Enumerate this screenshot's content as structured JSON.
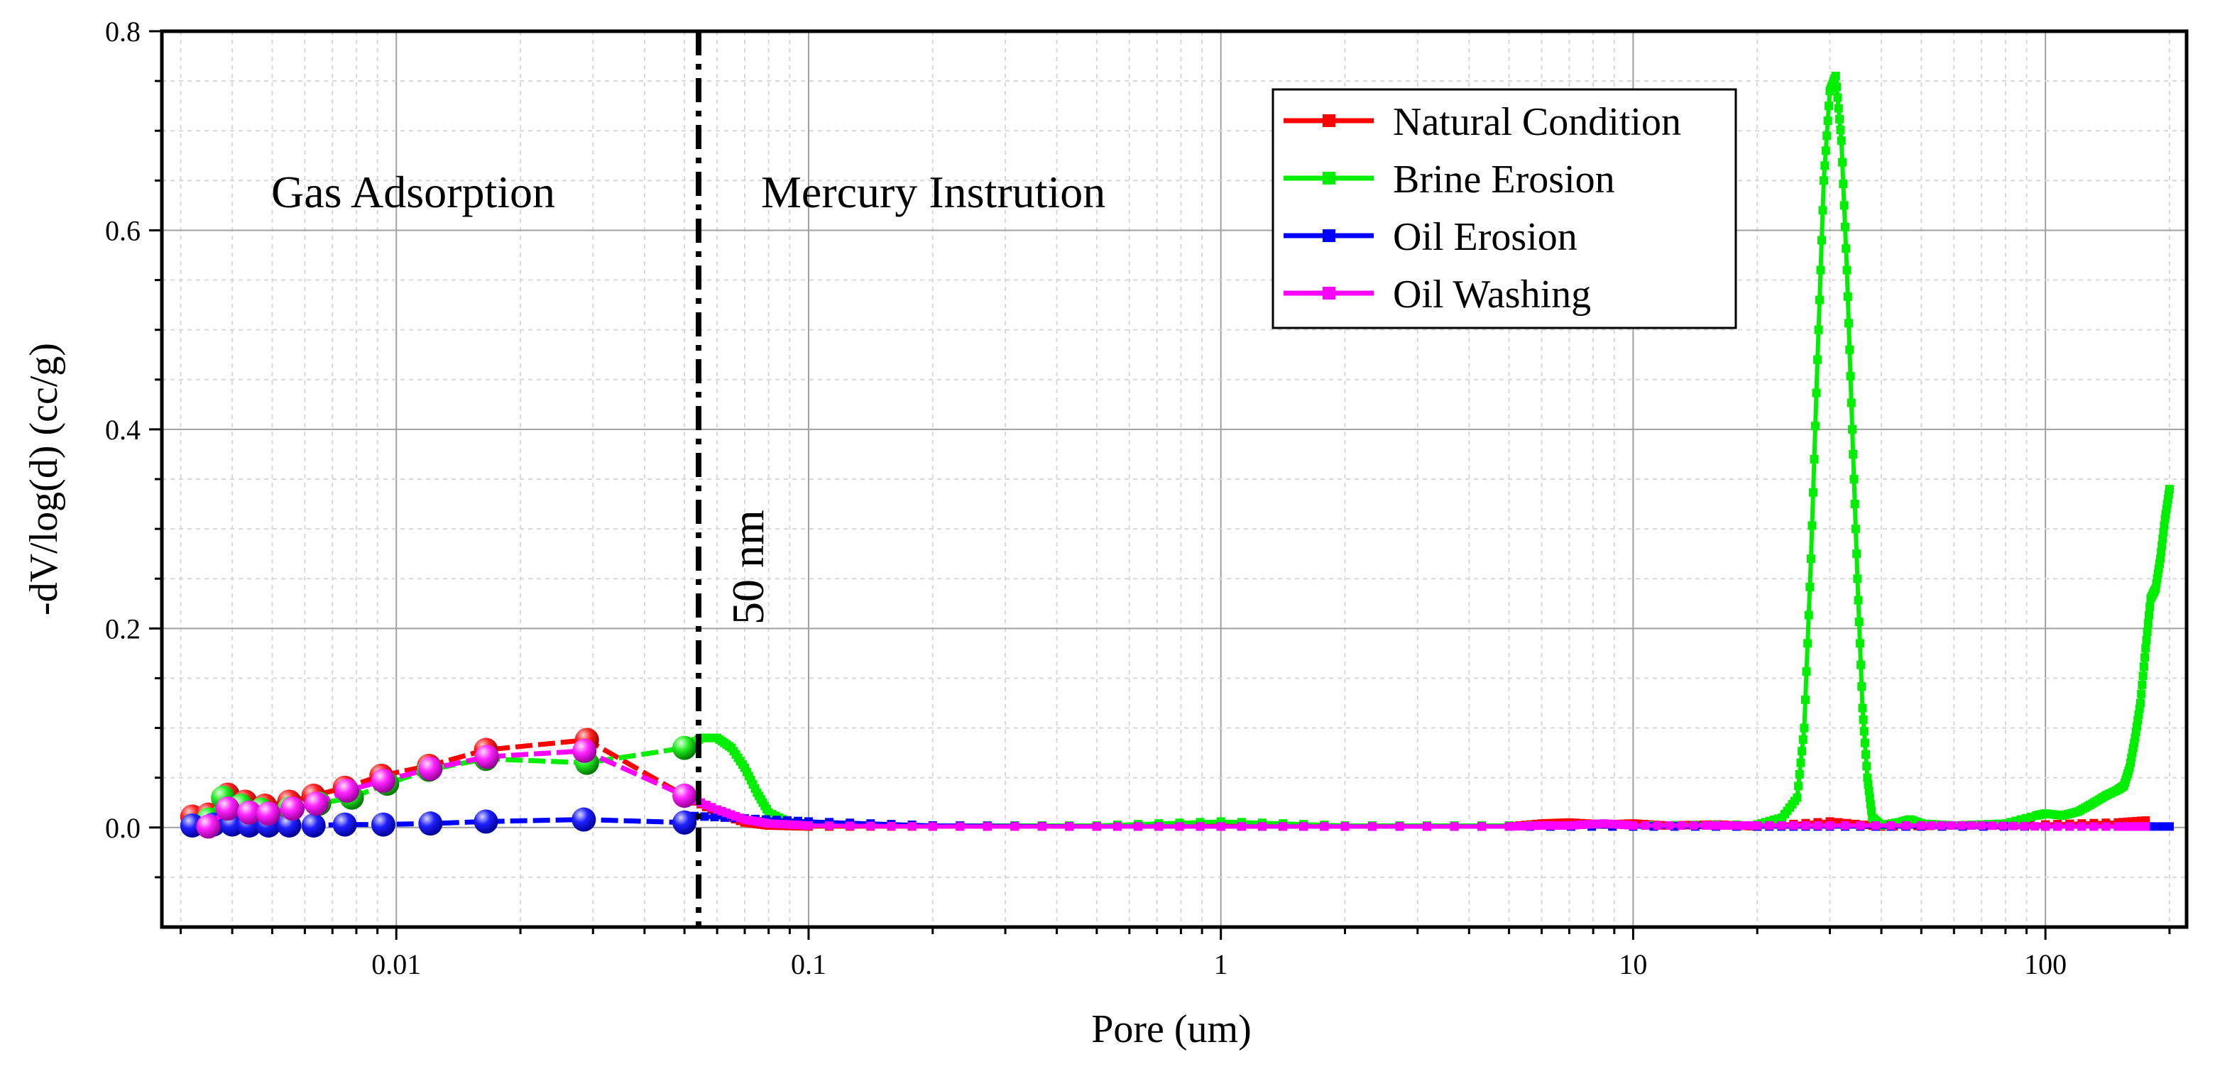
{
  "chart_data": {
    "type": "line",
    "title": "",
    "xlabel": "Pore (um)",
    "ylabel": "-dV/log(d) (cc/g)",
    "xscale": "log",
    "xlim": [
      0.0027,
      220
    ],
    "ylim": [
      -0.1,
      0.8
    ],
    "xticks": [
      0.01,
      0.1,
      1,
      10,
      100
    ],
    "xtick_labels": [
      "0.01",
      "0.1",
      "1",
      "10",
      "100"
    ],
    "yticks": [
      0.0,
      0.2,
      0.4,
      0.6,
      0.8
    ],
    "ytick_labels": [
      "0.0",
      "0.2",
      "0.4",
      "0.6",
      "0.8"
    ],
    "grid": true,
    "legend_position": "top-right",
    "divider": {
      "x": 0.05,
      "label": "50 nm"
    },
    "annotations": {
      "left": "Gas Adsorption",
      "right": "Mercury Instrution"
    },
    "series": [
      {
        "name": "Natural Condition",
        "color": "#ff0000",
        "gas_x": [
          0.0032,
          0.0035,
          0.0039,
          0.0043,
          0.0048,
          0.0055,
          0.0063,
          0.0075,
          0.0092,
          0.012,
          0.0165,
          0.029,
          0.05
        ],
        "gas_y": [
          0.011,
          0.013,
          0.033,
          0.026,
          0.022,
          0.026,
          0.032,
          0.04,
          0.052,
          0.062,
          0.078,
          0.088,
          0.032
        ],
        "hg_x": [
          0.05,
          0.06,
          0.07,
          0.08,
          0.1,
          0.2,
          0.5,
          1,
          2,
          5,
          6,
          7,
          8.5,
          10,
          12,
          16,
          20,
          30,
          40,
          60,
          100,
          150,
          175
        ],
        "hg_y": [
          0.032,
          0.015,
          0.005,
          0.002,
          0.001,
          0.001,
          0.001,
          0.002,
          0.001,
          0.001,
          0.004,
          0.005,
          0.003,
          0.004,
          0.002,
          0.003,
          0.001,
          0.006,
          0.001,
          0.002,
          0.003,
          0.005,
          0.007
        ]
      },
      {
        "name": "Brine Erosion",
        "color": "#00ee00",
        "gas_x": [
          0.0035,
          0.0038,
          0.0042,
          0.0047,
          0.0055,
          0.0065,
          0.0078,
          0.0095,
          0.012,
          0.0165,
          0.029,
          0.05
        ],
        "gas_y": [
          0.008,
          0.03,
          0.022,
          0.018,
          0.019,
          0.024,
          0.03,
          0.044,
          0.058,
          0.069,
          0.065,
          0.08
        ],
        "hg_x": [
          0.05,
          0.055,
          0.06,
          0.065,
          0.07,
          0.075,
          0.08,
          0.09,
          0.1,
          0.2,
          0.5,
          1,
          2,
          5,
          10,
          20,
          23,
          25,
          26,
          27,
          28,
          29,
          30,
          31,
          32,
          33,
          34,
          35,
          36,
          37,
          38,
          40,
          45,
          47,
          50,
          60,
          80,
          95,
          100,
          110,
          120,
          130,
          140,
          150,
          155,
          160,
          165,
          170,
          175,
          180,
          185,
          190,
          195,
          200
        ],
        "hg_y": [
          0.08,
          0.09,
          0.09,
          0.08,
          0.06,
          0.035,
          0.015,
          0.005,
          0.003,
          0.002,
          0.002,
          0.006,
          0.002,
          0.002,
          0.002,
          0.003,
          0.01,
          0.03,
          0.1,
          0.27,
          0.47,
          0.65,
          0.74,
          0.755,
          0.69,
          0.56,
          0.4,
          0.25,
          0.12,
          0.05,
          0.01,
          0.002,
          0.006,
          0.008,
          0.004,
          0.002,
          0.004,
          0.012,
          0.014,
          0.012,
          0.016,
          0.024,
          0.032,
          0.038,
          0.042,
          0.06,
          0.09,
          0.125,
          0.18,
          0.23,
          0.24,
          0.27,
          0.31,
          0.34
        ]
      },
      {
        "name": "Oil Erosion",
        "color": "#0000ff",
        "gas_x": [
          0.0032,
          0.0036,
          0.004,
          0.0044,
          0.0049,
          0.0055,
          0.0063,
          0.0075,
          0.0093,
          0.0121,
          0.0165,
          0.0285,
          0.05
        ],
        "gas_y": [
          0.002,
          0.003,
          0.003,
          0.002,
          0.002,
          0.002,
          0.002,
          0.003,
          0.003,
          0.004,
          0.006,
          0.008,
          0.005
        ],
        "hg_x": [
          0.05,
          0.07,
          0.1,
          0.2,
          0.5,
          1,
          2,
          5,
          10,
          20,
          30,
          50,
          100,
          150,
          200
        ],
        "hg_y": [
          0.012,
          0.009,
          0.006,
          0.002,
          0.001,
          0.001,
          0.001,
          0.001,
          0.001,
          0.001,
          0.001,
          0.001,
          0.001,
          0.001,
          0.001
        ]
      },
      {
        "name": "Oil Washing",
        "color": "#ff00ff",
        "gas_x": [
          0.0035,
          0.0039,
          0.0044,
          0.0049,
          0.0056,
          0.0064,
          0.0076,
          0.0093,
          0.0121,
          0.0166,
          0.0286,
          0.05
        ],
        "gas_y": [
          0.001,
          0.019,
          0.015,
          0.014,
          0.019,
          0.024,
          0.037,
          0.047,
          0.059,
          0.071,
          0.077,
          0.032
        ],
        "hg_x": [
          0.05,
          0.06,
          0.07,
          0.08,
          0.1,
          0.2,
          0.5,
          1,
          2,
          5,
          6,
          7,
          8.5,
          10,
          15,
          20,
          30,
          50,
          70,
          100,
          150,
          175
        ],
        "hg_y": [
          0.032,
          0.018,
          0.008,
          0.004,
          0.002,
          0.001,
          0.001,
          0.001,
          0.001,
          0.001,
          0.002,
          0.002,
          0.004,
          0.002,
          0.002,
          0.002,
          0.002,
          0.002,
          0.002,
          0.001,
          0.001,
          0.001
        ]
      }
    ]
  }
}
